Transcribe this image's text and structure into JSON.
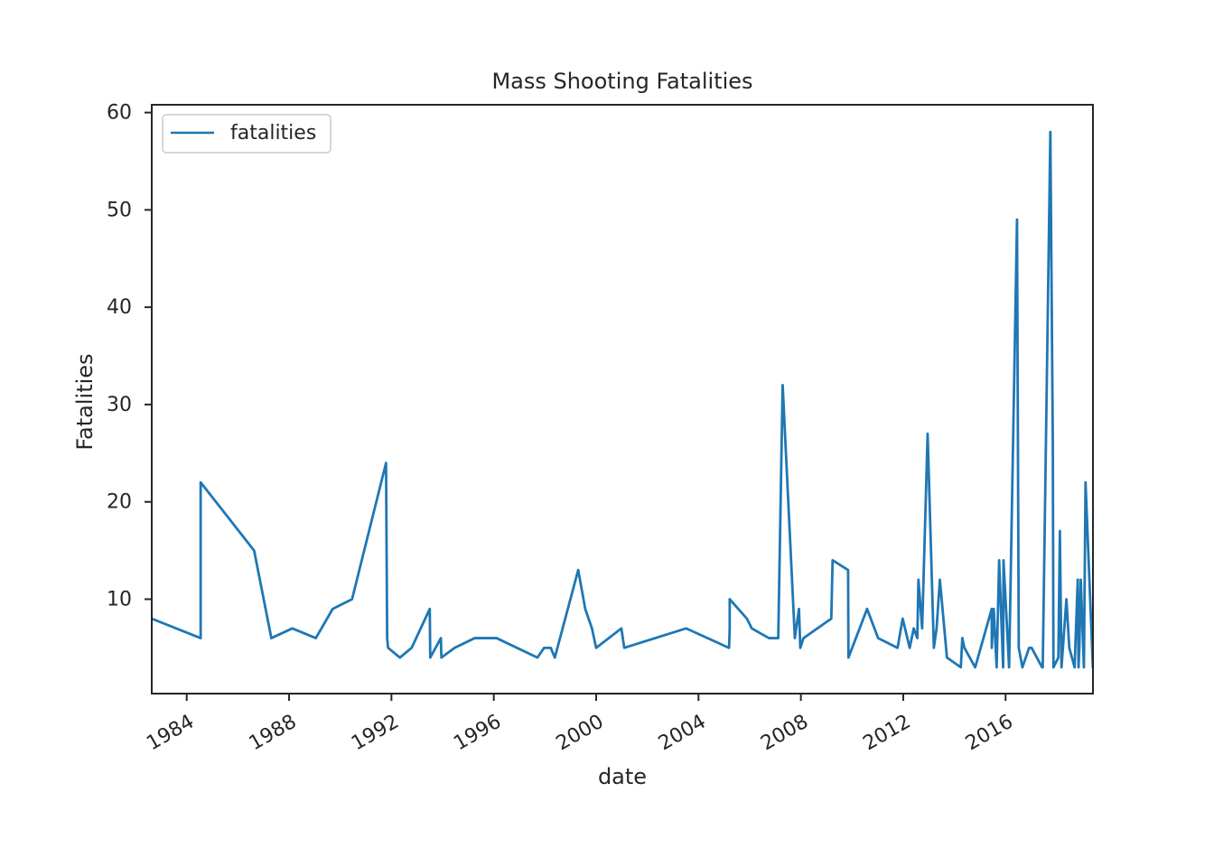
{
  "chart_data": {
    "type": "line",
    "title": "Mass Shooting Fatalities",
    "xlabel": "date",
    "ylabel": "Fatalities",
    "xlim": [
      "1982-08-20",
      "2019-06-01"
    ],
    "ylim": [
      0.3,
      60.8
    ],
    "x_ticks": [
      {
        "date": "1984-01-01",
        "label": "1984"
      },
      {
        "date": "1988-01-01",
        "label": "1988"
      },
      {
        "date": "1992-01-01",
        "label": "1992"
      },
      {
        "date": "1996-01-01",
        "label": "1996"
      },
      {
        "date": "2000-01-01",
        "label": "2000"
      },
      {
        "date": "2004-01-01",
        "label": "2004"
      },
      {
        "date": "2008-01-01",
        "label": "2008"
      },
      {
        "date": "2012-01-01",
        "label": "2012"
      },
      {
        "date": "2016-01-01",
        "label": "2016"
      }
    ],
    "y_ticks": [
      10,
      20,
      30,
      40,
      50,
      60
    ],
    "grid": false,
    "legend": {
      "position": "top-left"
    },
    "series": [
      {
        "name": "fatalities",
        "color": "#1f77b4",
        "x": [
          "1982-08-20",
          "1984-07-18",
          "1984-07-18",
          "1986-08-20",
          "1987-04-23",
          "1988-02-16",
          "1989-01-17",
          "1989-09-14",
          "1990-06-18",
          "1991-10-16",
          "1991-11-01",
          "1991-11-14",
          "1992-05-01",
          "1992-10-15",
          "1993-07-01",
          "1993-07-08",
          "1993-12-07",
          "1993-12-14",
          "1994-06-20",
          "1995-04-03",
          "1996-02-09",
          "1997-09-15",
          "1997-12-19",
          "1998-03-24",
          "1998-05-21",
          "1999-04-20",
          "1999-07-29",
          "1999-11-02",
          "2000-01-01",
          "2000-12-26",
          "2001-02-05",
          "2003-07-08",
          "2005-03-12",
          "2005-03-21",
          "2005-03-21",
          "2005-11-22",
          "2006-01-30",
          "2006-10-02",
          "2007-02-12",
          "2007-04-16",
          "2007-10-07",
          "2007-12-05",
          "2007-12-24",
          "2008-02-07",
          "2009-03-10",
          "2009-03-29",
          "2009-11-05",
          "2009-11-10",
          "2010-08-03",
          "2011-01-08",
          "2011-10-12",
          "2011-12-24",
          "2012-04-02",
          "2012-05-30",
          "2012-07-20",
          "2012-08-05",
          "2012-09-27",
          "2012-12-14",
          "2013-03-13",
          "2013-04-21",
          "2013-06-07",
          "2013-09-16",
          "2014-04-02",
          "2014-04-23",
          "2014-05-23",
          "2014-10-24",
          "2015-06-17",
          "2015-06-18",
          "2015-07-16",
          "2015-08-26",
          "2015-10-01",
          "2015-11-27",
          "2015-12-02",
          "2016-02-20",
          "2016-06-12",
          "2016-07-07",
          "2016-08-28",
          "2016-12-02",
          "2017-01-06",
          "2017-06-05",
          "2017-06-14",
          "2017-10-01",
          "2017-11-05",
          "2017-11-14",
          "2018-01-23",
          "2018-02-14",
          "2018-03-09",
          "2018-05-18",
          "2018-06-28",
          "2018-09-12",
          "2018-10-27",
          "2018-11-07",
          "2018-11-19",
          "2018-12-09",
          "2019-01-23",
          "2019-02-15",
          "2019-05-31",
          "2019-06-01"
        ],
        "values": [
          8,
          6,
          22,
          15,
          6,
          7,
          6,
          9,
          10,
          24,
          6,
          5,
          4,
          5,
          9,
          4,
          6,
          4,
          5,
          6,
          6,
          4,
          5,
          5,
          4,
          13,
          9,
          7,
          5,
          7,
          5,
          7,
          5,
          7,
          10,
          8,
          7,
          6,
          6,
          32,
          6,
          9,
          5,
          6,
          8,
          14,
          13,
          4,
          9,
          6,
          5,
          8,
          5,
          7,
          6,
          12,
          7,
          27,
          5,
          7,
          12,
          4,
          3,
          6,
          5,
          3,
          9,
          5,
          9,
          3,
          14,
          3,
          14,
          3,
          49,
          5,
          3,
          5,
          5,
          3,
          3,
          58,
          26,
          3,
          4,
          17,
          3,
          10,
          5,
          3,
          12,
          3,
          5,
          12,
          3,
          22,
          3,
          3
        ]
      }
    ]
  }
}
